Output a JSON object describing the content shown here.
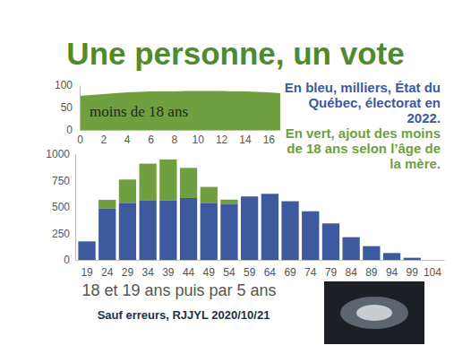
{
  "chart_data": [
    {
      "type": "area",
      "color": "#6f9f3f",
      "annotations": [
        "moins de 18 ans"
      ],
      "x": [
        0,
        1,
        2,
        3,
        4,
        5,
        6,
        7,
        8,
        9,
        10,
        11,
        12,
        13,
        14,
        15,
        16,
        17
      ],
      "values": [
        76,
        78,
        80,
        82,
        84,
        85,
        86,
        86,
        86,
        87,
        87,
        87,
        87,
        86,
        86,
        85,
        84,
        82
      ],
      "xlim": [
        0,
        17
      ],
      "xticks": [
        0,
        2,
        4,
        6,
        8,
        10,
        12,
        14,
        16
      ],
      "ylim": [
        0,
        100
      ],
      "yticks": [
        0,
        50,
        100
      ],
      "grid": false
    },
    {
      "type": "bar",
      "title": "Une personne, un vote",
      "stacked": true,
      "grid": false,
      "xlabel": "18 et 19 ans puis par 5 ans",
      "annotations": [
        "En bleu, milliers, État du Québec, électorat en 2022.",
        "En vert, ajout des moins de 18 ans selon l’âge de la mère.",
        "Sauf erreurs, RJJYL 2020/10/21"
      ],
      "categories": [
        "19",
        "24",
        "29",
        "34",
        "39",
        "44",
        "49",
        "54",
        "59",
        "64",
        "69",
        "74",
        "79",
        "84",
        "89",
        "94",
        "99",
        "104"
      ],
      "series": [
        {
          "color": "#3d5a9e",
          "values": [
            175,
            488,
            540,
            565,
            560,
            585,
            540,
            525,
            600,
            625,
            555,
            460,
            345,
            215,
            130,
            65,
            20,
            0
          ]
        },
        {
          "color": "#6f9f3f",
          "values": [
            0,
            80,
            220,
            345,
            390,
            285,
            150,
            45,
            0,
            0,
            0,
            0,
            0,
            0,
            0,
            0,
            0,
            0
          ]
        }
      ],
      "ylim": [
        0,
        1000
      ],
      "yticks": [
        0,
        250,
        500,
        750,
        1000
      ]
    }
  ]
}
